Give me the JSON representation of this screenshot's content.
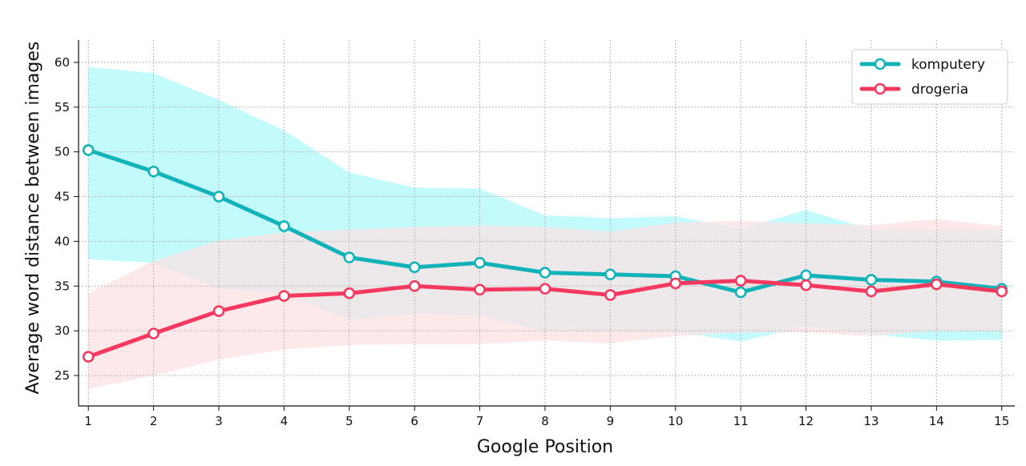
{
  "chart_data": {
    "type": "line",
    "title": "",
    "xlabel": "Google Position",
    "ylabel": "Average word distance between images",
    "x": [
      1,
      2,
      3,
      4,
      5,
      6,
      7,
      8,
      9,
      10,
      11,
      12,
      13,
      14,
      15
    ],
    "xlim": [
      0.85,
      15.2
    ],
    "ylim": [
      21.6,
      62.5
    ],
    "xticks": [
      1,
      2,
      3,
      4,
      5,
      6,
      7,
      8,
      9,
      10,
      11,
      12,
      13,
      14,
      15
    ],
    "yticks": [
      25,
      30,
      35,
      40,
      45,
      50,
      55,
      60
    ],
    "grid": true,
    "legend_position": "top-right",
    "series": [
      {
        "name": "komputery",
        "color": "#12b3b8",
        "band_color": "#c3fbfd",
        "values": [
          50.2,
          47.8,
          45.0,
          41.7,
          38.2,
          37.1,
          37.6,
          36.5,
          36.3,
          36.1,
          34.3,
          36.2,
          35.7,
          35.5,
          34.7
        ],
        "band_upper": [
          59.5,
          58.8,
          55.8,
          52.4,
          47.7,
          46.0,
          45.9,
          42.9,
          42.6,
          42.8,
          41.4,
          43.5,
          41.3,
          41.3,
          41.3
        ],
        "band_lower": [
          38.0,
          37.6,
          34.7,
          34.2,
          31.2,
          31.9,
          31.7,
          30.0,
          29.9,
          29.9,
          28.8,
          30.5,
          29.6,
          28.9,
          29.0
        ]
      },
      {
        "name": "drogeria",
        "color": "#f5385e",
        "band_color": "#fde0e2",
        "values": [
          27.1,
          29.7,
          32.2,
          33.9,
          34.2,
          35.0,
          34.6,
          34.7,
          34.0,
          35.3,
          35.6,
          35.1,
          34.4,
          35.2,
          34.4
        ],
        "band_upper": [
          34.2,
          37.8,
          40.1,
          41.0,
          41.3,
          41.6,
          41.8,
          41.6,
          41.1,
          42.1,
          42.3,
          42.0,
          41.8,
          42.5,
          41.7
        ],
        "band_lower": [
          23.5,
          25.0,
          26.8,
          27.9,
          28.4,
          28.5,
          28.5,
          28.9,
          28.6,
          29.4,
          29.8,
          29.8,
          29.4,
          30.0,
          29.9
        ]
      }
    ]
  }
}
